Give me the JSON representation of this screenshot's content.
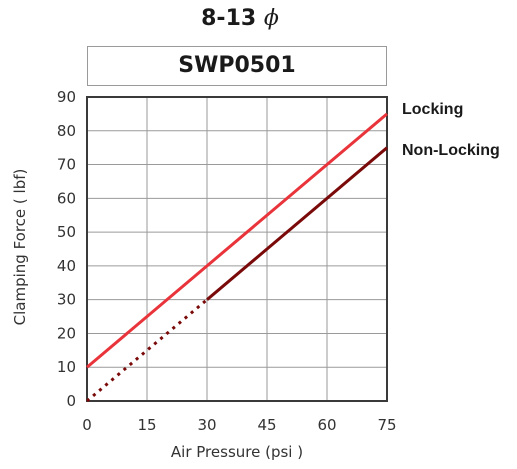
{
  "header": {
    "title": "8-13",
    "title_symbol": "ϕ",
    "model": "SWP0501"
  },
  "chart_data": {
    "type": "line",
    "xlabel": "Air Pressure (psi )",
    "ylabel": "Clamping Force ( lbf)",
    "xlim": [
      0,
      75
    ],
    "ylim": [
      0,
      90
    ],
    "x_ticks": [
      "0",
      "15",
      "30",
      "45",
      "60",
      "75"
    ],
    "y_ticks": [
      "0",
      "10",
      "20",
      "30",
      "40",
      "50",
      "60",
      "70",
      "80",
      "90"
    ],
    "grid": true,
    "legend_placement": "right",
    "series": [
      {
        "name": "Locking",
        "color": "#e8343a",
        "style": "solid",
        "x": [
          0,
          75
        ],
        "y": [
          10,
          85
        ]
      },
      {
        "name": "Non-Locking",
        "color": "#7a0a0a",
        "style": "dotted-then-solid",
        "x": [
          0,
          30,
          75
        ],
        "y": [
          0,
          30,
          75
        ],
        "dotted_until_x": 30
      }
    ]
  }
}
